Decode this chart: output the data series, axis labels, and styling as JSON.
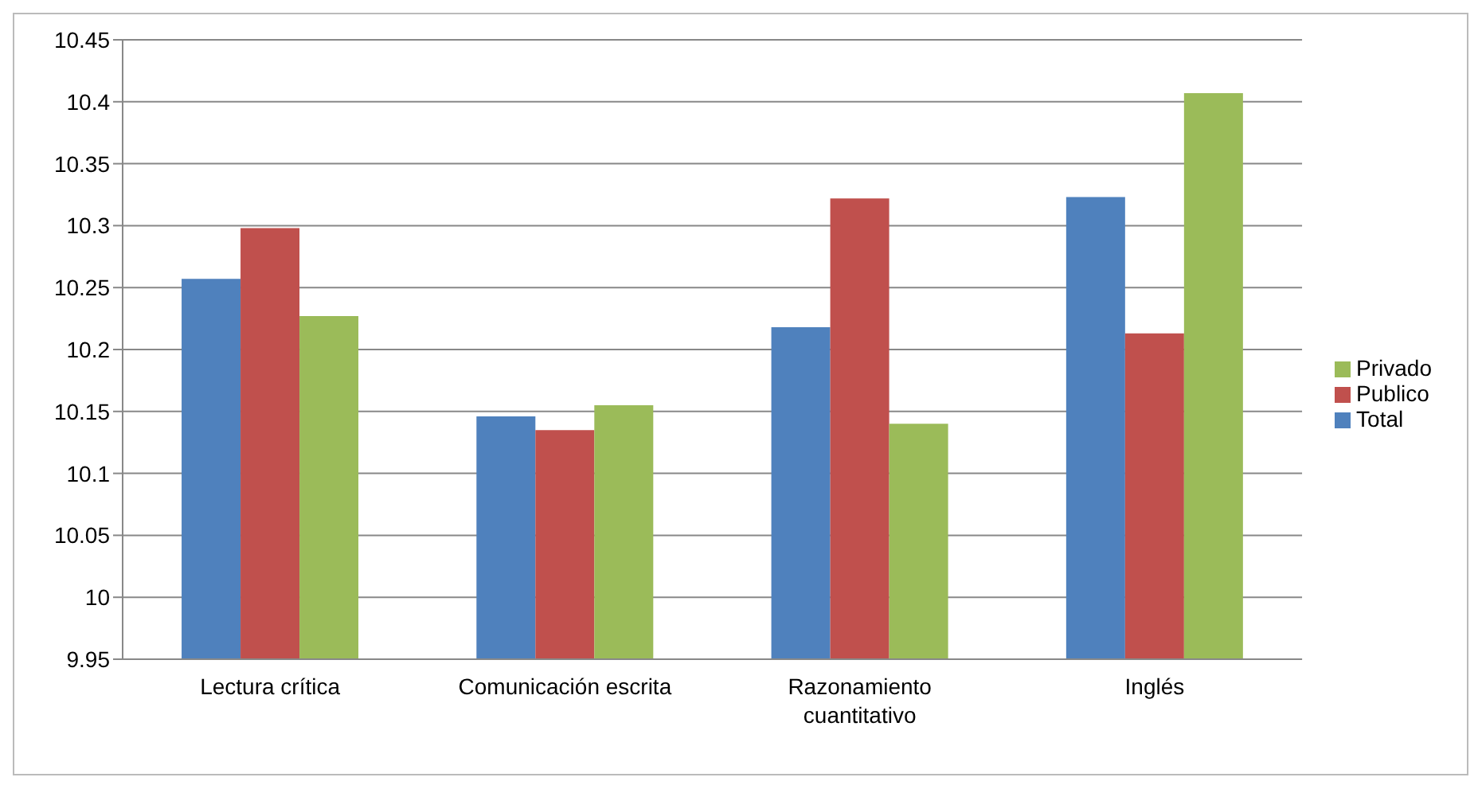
{
  "chart_data": {
    "type": "bar",
    "categories": [
      "Lectura crítica",
      "Comunicación escrita",
      "Razonamiento cuantitativo",
      "Inglés"
    ],
    "series": [
      {
        "name": "Total",
        "color": "#4f81bd",
        "values": [
          10.257,
          10.146,
          10.218,
          10.323
        ]
      },
      {
        "name": "Publico",
        "color": "#c0504d",
        "values": [
          10.298,
          10.135,
          10.322,
          10.213
        ]
      },
      {
        "name": "Privado",
        "color": "#9bbb59",
        "values": [
          10.227,
          10.155,
          10.14,
          10.407
        ]
      }
    ],
    "ylim": [
      9.95,
      10.45
    ],
    "yticks": [
      9.95,
      10,
      10.05,
      10.1,
      10.15,
      10.2,
      10.25,
      10.3,
      10.35,
      10.4,
      10.45
    ],
    "grid": "y",
    "legend": "right"
  }
}
